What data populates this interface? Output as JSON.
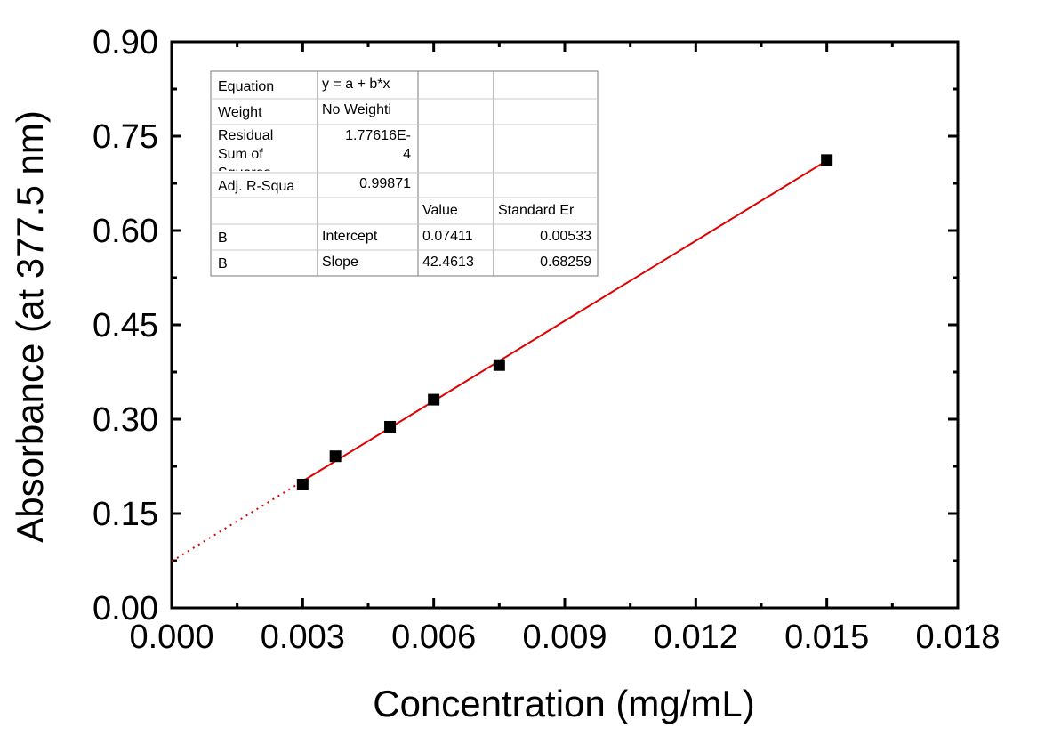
{
  "chart_data": {
    "type": "scatter",
    "title": "",
    "xlabel": "Concentration (mg/mL)",
    "ylabel": "Absorbance (at 377.5 nm)",
    "xlim": [
      0,
      0.018
    ],
    "ylim": [
      0,
      0.9
    ],
    "x_ticks": [
      "0.000",
      "0.003",
      "0.006",
      "0.009",
      "0.012",
      "0.015",
      "0.018"
    ],
    "y_ticks": [
      "0.00",
      "0.15",
      "0.30",
      "0.45",
      "0.60",
      "0.75",
      "0.90"
    ],
    "x_tick_values": [
      0,
      0.003,
      0.006,
      0.009,
      0.012,
      0.015,
      0.018
    ],
    "y_tick_values": [
      0,
      0.15,
      0.3,
      0.45,
      0.6,
      0.75,
      0.9
    ],
    "points": [
      {
        "x": 0.003,
        "y": 0.196
      },
      {
        "x": 0.00375,
        "y": 0.241
      },
      {
        "x": 0.005,
        "y": 0.288
      },
      {
        "x": 0.006,
        "y": 0.331
      },
      {
        "x": 0.0075,
        "y": 0.386
      },
      {
        "x": 0.015,
        "y": 0.712
      }
    ],
    "fit": {
      "intercept": 0.07411,
      "slope": 42.4613,
      "x_range": [
        0.003,
        0.015
      ]
    },
    "fit_color": "#e00000",
    "marker_color": "#000000",
    "grid": false,
    "fit_table": {
      "rows": [
        [
          "Equation",
          "y = a + b*x",
          "",
          ""
        ],
        [
          "Weight",
          "No Weighti",
          "",
          ""
        ],
        [
          "Residual Sum of Squares",
          "1.77616E-4",
          "",
          ""
        ],
        [
          "Adj. R-Squa",
          "0.99871",
          "",
          ""
        ],
        [
          "",
          "",
          "Value",
          "Standard Er"
        ],
        [
          "B",
          "Intercept",
          "0.07411",
          "0.00533"
        ],
        [
          "B",
          "Slope",
          "42.4613",
          "0.68259"
        ]
      ]
    }
  }
}
